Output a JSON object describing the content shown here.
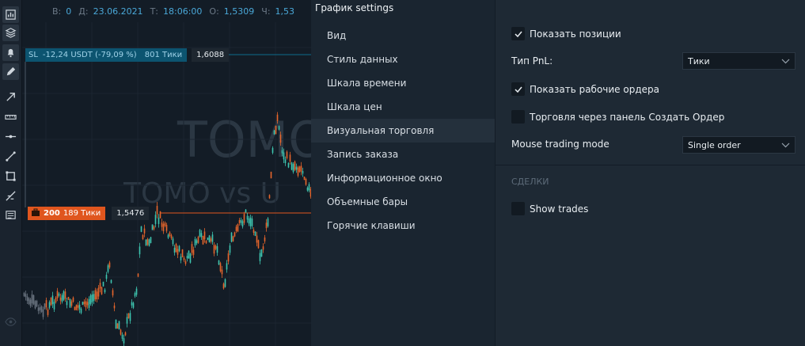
{
  "ohlc": {
    "b_label": "В:",
    "b_value": "0",
    "d_label": "Д:",
    "d_value": "23.06.2021",
    "t_label": "Т:",
    "t_value": "18:06:00",
    "o_label": "О:",
    "o_value": "1,5309",
    "c_label": "Ч:",
    "c_value": "1,53"
  },
  "sl_label": {
    "tag": "SL",
    "text": "-12,24 USDT (-79,09 %)",
    "ticks": "801 Тики",
    "price": "1,6088"
  },
  "entry_label": {
    "qty": "200",
    "ticks": "189 Тики",
    "price": "1,5476"
  },
  "watermark": {
    "line1": "TOMO",
    "line2": "TOMO vs U"
  },
  "colors": {
    "up": "#3ec6b0",
    "down": "#e8662b",
    "sl": "#0c5470",
    "entry": "#e0561e",
    "accent": "#4aa8d8"
  },
  "toolbar": [
    "chart-icon",
    "layers-icon",
    "alert-icon",
    "pencil-icon",
    "arrow-icon",
    "ruler-icon",
    "h-line-icon",
    "trend-line-icon",
    "rectangle-icon",
    "fib-icon",
    "ledger-icon",
    "eye-icon"
  ],
  "settings": {
    "title": "График settings",
    "menu": [
      "Вид",
      "Стиль данных",
      "Шкала времени",
      "Шкала цен",
      "Визуальная торговля",
      "Запись заказа",
      "Информационное окно",
      "Объемные бары",
      "Горячие клавиши"
    ],
    "active_index": 4,
    "show_positions": {
      "label": "Показать позиции",
      "checked": true
    },
    "pnl_type": {
      "label": "Тип PnL:",
      "value": "Тики"
    },
    "show_orders": {
      "label": "Показать рабочие ордера",
      "checked": true
    },
    "trade_via_panel": {
      "label": "Торговля через панель Создать Ордер",
      "checked": false
    },
    "mouse_mode": {
      "label": "Mouse trading mode",
      "value": "Single order"
    },
    "trades_section": "СДЕЛКИ",
    "show_trades": {
      "label": "Show trades",
      "checked": false
    }
  }
}
